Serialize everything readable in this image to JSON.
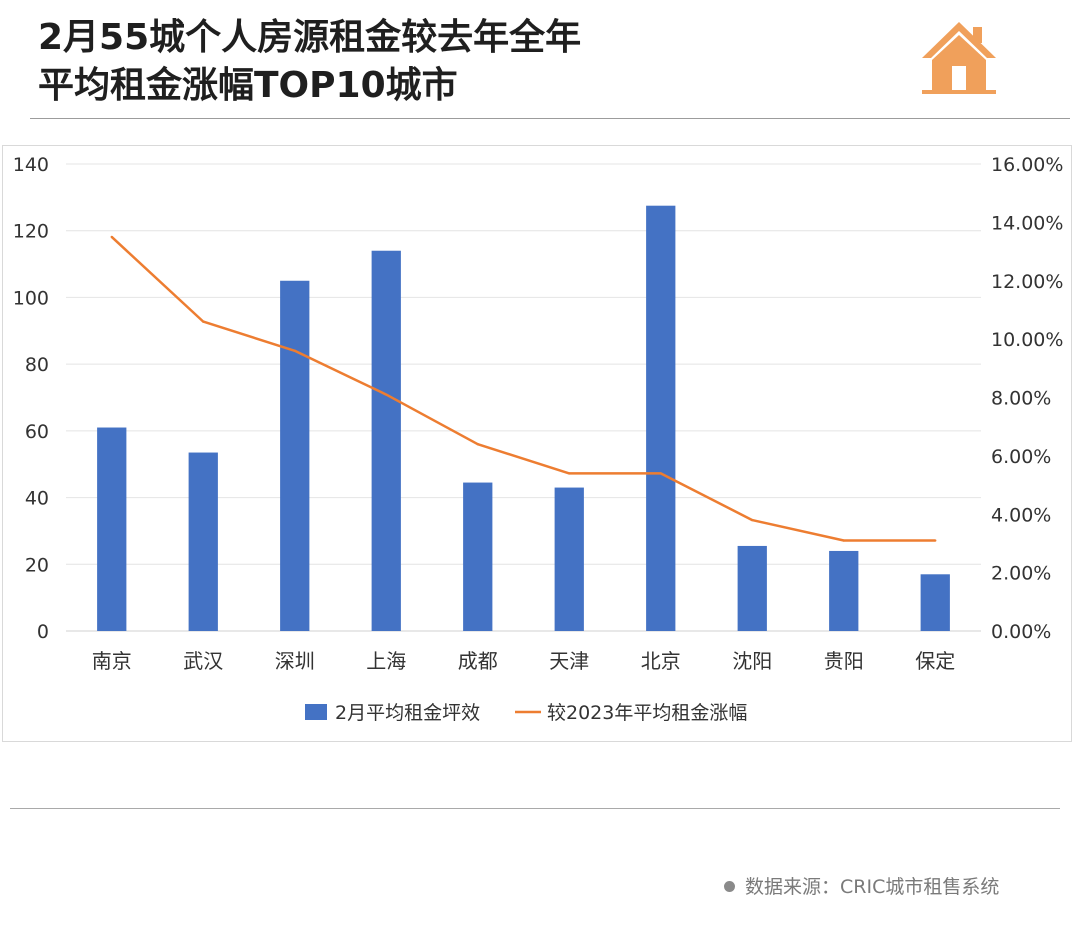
{
  "title_line1": "2月55城个人房源租金较去年全年",
  "title_line2": "平均租金涨幅TOP10城市",
  "source": {
    "label": "数据来源：CRIC城市租售系统"
  },
  "icons": {
    "logo": "house-icon",
    "source_bullet": "dot-icon"
  },
  "chart_data": {
    "type": "bar",
    "categories": [
      "南京",
      "武汉",
      "深圳",
      "上海",
      "成都",
      "天津",
      "北京",
      "沈阳",
      "贵阳",
      "保定"
    ],
    "series": [
      {
        "name": "2月平均租金坪效",
        "type": "bar",
        "axis": "left",
        "color": "#4472c4",
        "values": [
          61,
          53.5,
          105,
          114,
          44.5,
          43,
          127.5,
          25.5,
          24,
          17
        ]
      },
      {
        "name": "较2023年平均租金涨幅",
        "type": "line",
        "axis": "right",
        "color": "#ed7d31",
        "values": [
          13.5,
          10.6,
          9.6,
          8.1,
          6.4,
          5.4,
          5.4,
          3.8,
          3.1,
          3.1
        ]
      }
    ],
    "y_left": {
      "min": 0,
      "max": 140,
      "ticks": [
        0,
        20,
        40,
        60,
        80,
        100,
        120,
        140
      ]
    },
    "y_right": {
      "min": 0,
      "max": 16,
      "ticks": [
        0,
        2,
        4,
        6,
        8,
        10,
        12,
        14,
        16
      ],
      "tick_labels": [
        "0.00%",
        "2.00%",
        "4.00%",
        "6.00%",
        "8.00%",
        "10.00%",
        "12.00%",
        "14.00%",
        "16.00%"
      ]
    },
    "grid": true,
    "legend": "bottom"
  }
}
